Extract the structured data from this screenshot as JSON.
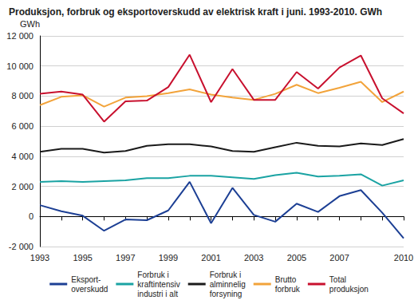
{
  "chart_data": {
    "type": "line",
    "title": "Produksjon, forbruk og eksportoverskudd av elektrisk kraft i juni. 1993-2010. GWh",
    "y_label": "GWh",
    "categories": [
      "1993",
      null,
      "1995",
      null,
      "1997",
      null,
      "1999",
      null,
      "2001",
      null,
      "2003",
      null,
      "2005",
      null,
      "2007",
      null,
      null,
      "2010"
    ],
    "series": [
      {
        "name": "Eksport-\noverskudd",
        "color": "#1c3f94",
        "values": [
          750,
          350,
          50,
          -950,
          -200,
          -250,
          400,
          2300,
          -450,
          1900,
          100,
          -350,
          850,
          300,
          1350,
          1750,
          250,
          -1450
        ]
      },
      {
        "name": "Forbruk i\nkraftintensiv\nindustri i alt",
        "color": "#1aa3a3",
        "values": [
          2300,
          2350,
          2300,
          2350,
          2400,
          2550,
          2550,
          2700,
          2700,
          2600,
          2500,
          2750,
          2900,
          2650,
          2700,
          2800,
          2050,
          2400
        ]
      },
      {
        "name": "Forbruk i\nalminnelig\nforsyning",
        "color": "#1a1a1a",
        "values": [
          4300,
          4500,
          4500,
          4250,
          4350,
          4700,
          4800,
          4800,
          4650,
          4350,
          4300,
          4600,
          4900,
          4700,
          4650,
          4850,
          4750,
          5150
        ]
      },
      {
        "name": "Brutto\nforbruk",
        "color": "#f2a33a",
        "values": [
          7400,
          7950,
          8050,
          7300,
          7900,
          8000,
          8200,
          8450,
          8100,
          7900,
          7750,
          8150,
          8750,
          8200,
          8550,
          8950,
          7600,
          8300
        ]
      },
      {
        "name": "Total\nproduksjon",
        "color": "#c8102e",
        "values": [
          8150,
          8300,
          8100,
          6300,
          7650,
          7700,
          8600,
          10750,
          7600,
          9800,
          7750,
          7750,
          9600,
          8500,
          9900,
          10700,
          7850,
          6850
        ]
      }
    ],
    "ylim": [
      -2000,
      12000
    ],
    "yticks": [
      {
        "value": -2000,
        "label": "-2 000"
      },
      0,
      {
        "value": 2000,
        "label": "2 000"
      },
      {
        "value": 4000,
        "label": "4 000"
      },
      {
        "value": 6000,
        "label": "6 000"
      },
      {
        "value": 8000,
        "label": "8 000"
      },
      {
        "value": 10000,
        "label": "10 000"
      },
      {
        "value": 12000,
        "label": "12 000"
      }
    ],
    "grid": true,
    "legend": "bottom"
  }
}
